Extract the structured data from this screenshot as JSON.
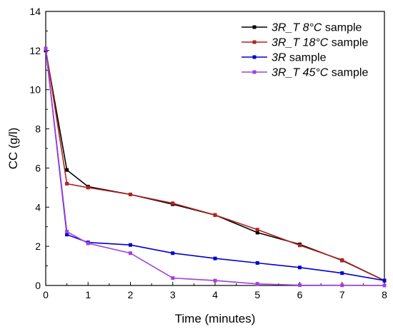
{
  "chart_data": {
    "type": "line",
    "xlabel": "Time (minutes)",
    "ylabel": "CC (g/l)",
    "xlim": [
      0,
      8
    ],
    "ylim": [
      0,
      14
    ],
    "x_ticks": [
      0,
      1,
      2,
      3,
      4,
      5,
      6,
      7,
      8
    ],
    "y_ticks": [
      0,
      2,
      4,
      6,
      8,
      10,
      12,
      14
    ],
    "grid": false,
    "legend_position": "top-right",
    "series": [
      {
        "label_italic": "3R_T 8°C",
        "label_rest": " sample",
        "color": "#000000",
        "points": [
          [
            0,
            12.0
          ],
          [
            0.5,
            5.9
          ],
          [
            1,
            5.05
          ],
          [
            2,
            4.65
          ],
          [
            3,
            4.15
          ],
          [
            4,
            3.6
          ],
          [
            5,
            2.7
          ],
          [
            6,
            2.1
          ],
          [
            7,
            1.28
          ],
          [
            8,
            0.25
          ]
        ]
      },
      {
        "label_italic": "3R_T 18°C",
        "label_rest": " sample",
        "color": "#b22222",
        "points": [
          [
            0,
            12.1
          ],
          [
            0.5,
            5.2
          ],
          [
            1,
            5.0
          ],
          [
            2,
            4.65
          ],
          [
            3,
            4.2
          ],
          [
            4,
            3.6
          ],
          [
            5,
            2.85
          ],
          [
            6,
            2.05
          ],
          [
            7,
            1.3
          ],
          [
            8,
            0.25
          ]
        ]
      },
      {
        "label_italic": "3R",
        "label_rest": " sample",
        "color": "#0000cc",
        "points": [
          [
            0,
            12.1
          ],
          [
            0.5,
            2.6
          ],
          [
            1,
            2.2
          ],
          [
            2,
            2.07
          ],
          [
            3,
            1.65
          ],
          [
            4,
            1.38
          ],
          [
            5,
            1.15
          ],
          [
            6,
            0.92
          ],
          [
            7,
            0.63
          ],
          [
            8,
            0.25
          ]
        ]
      },
      {
        "label_italic": "3R_T 45°C",
        "label_rest": " sample",
        "color": "#a040e0",
        "points": [
          [
            0,
            12.1
          ],
          [
            0.5,
            2.75
          ],
          [
            1,
            2.15
          ],
          [
            2,
            1.65
          ],
          [
            3,
            0.38
          ],
          [
            4,
            0.25
          ],
          [
            5,
            0.08
          ],
          [
            6,
            0.02
          ],
          [
            7,
            0.01
          ],
          [
            8,
            0.0
          ]
        ]
      }
    ]
  }
}
